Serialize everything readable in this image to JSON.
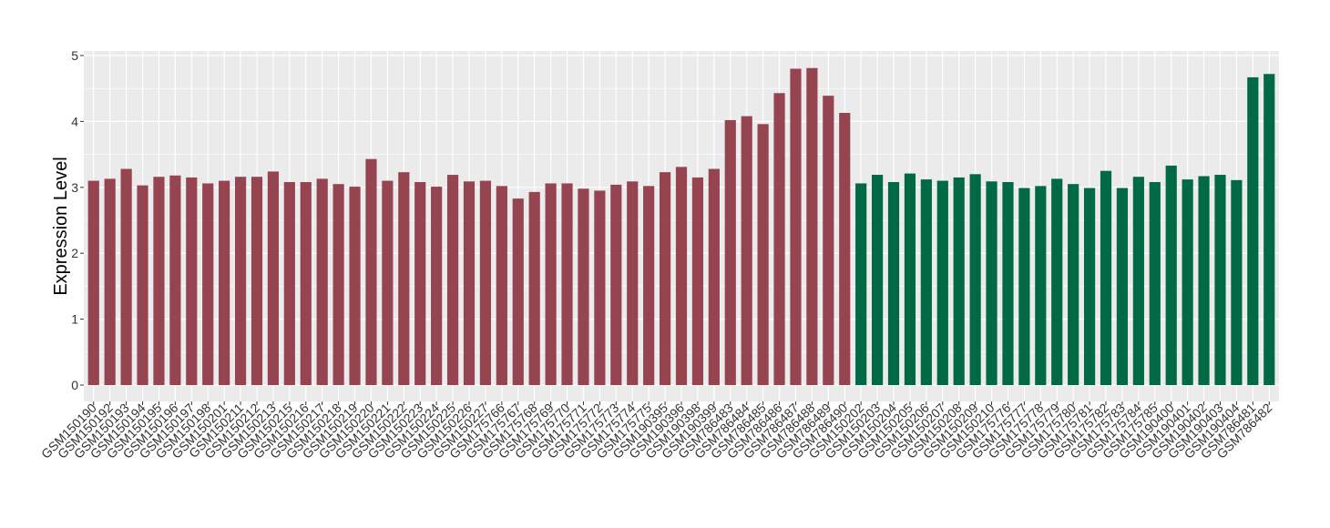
{
  "chart_data": {
    "type": "bar",
    "title": "",
    "xlabel": "",
    "ylabel": "Expression Level",
    "ylim": [
      0,
      5
    ],
    "yticks": [
      0,
      1,
      2,
      3,
      4,
      5
    ],
    "grid": true,
    "legend": "none",
    "colors": {
      "group_1": "#964450",
      "group_2": "#006a44",
      "panel_bg": "#ebebeb",
      "grid": "#ffffff"
    },
    "categories": [
      "GSM150190",
      "GSM150192",
      "GSM150193",
      "GSM150194",
      "GSM150195",
      "GSM150196",
      "GSM150197",
      "GSM150198",
      "GSM150201",
      "GSM150211",
      "GSM150212",
      "GSM150213",
      "GSM150215",
      "GSM150216",
      "GSM150217",
      "GSM150218",
      "GSM150219",
      "GSM150220",
      "GSM150221",
      "GSM150222",
      "GSM150223",
      "GSM150224",
      "GSM150225",
      "GSM150226",
      "GSM150227",
      "GSM175766",
      "GSM175767",
      "GSM175768",
      "GSM175769",
      "GSM175770",
      "GSM175771",
      "GSM175772",
      "GSM175773",
      "GSM175774",
      "GSM175775",
      "GSM190395",
      "GSM190396",
      "GSM190398",
      "GSM190399",
      "GSM786483",
      "GSM786484",
      "GSM786485",
      "GSM786486",
      "GSM786487",
      "GSM786488",
      "GSM786489",
      "GSM786490",
      "GSM150202",
      "GSM150203",
      "GSM150204",
      "GSM150205",
      "GSM150206",
      "GSM150207",
      "GSM150208",
      "GSM150209",
      "GSM150210",
      "GSM175776",
      "GSM175777",
      "GSM175778",
      "GSM175779",
      "GSM175780",
      "GSM175781",
      "GSM175782",
      "GSM175783",
      "GSM175784",
      "GSM175785",
      "GSM190400",
      "GSM190401",
      "GSM190402",
      "GSM190403",
      "GSM190404",
      "GSM786481",
      "GSM786482"
    ],
    "values": [
      3.1,
      3.13,
      3.28,
      3.03,
      3.16,
      3.18,
      3.15,
      3.06,
      3.1,
      3.16,
      3.16,
      3.24,
      3.08,
      3.08,
      3.13,
      3.05,
      3.01,
      3.43,
      3.1,
      3.23,
      3.08,
      3.01,
      3.19,
      3.09,
      3.1,
      3.02,
      2.83,
      2.93,
      3.06,
      3.06,
      2.98,
      2.95,
      3.04,
      3.09,
      3.02,
      3.23,
      3.31,
      3.15,
      3.28,
      4.02,
      4.08,
      3.96,
      4.43,
      4.8,
      4.81,
      4.39,
      4.13,
      3.06,
      3.19,
      3.08,
      3.21,
      3.12,
      3.1,
      3.15,
      3.2,
      3.09,
      3.08,
      2.99,
      3.02,
      3.13,
      3.05,
      2.99,
      3.25,
      2.99,
      3.16,
      3.08,
      3.33,
      3.12,
      3.17,
      3.19,
      3.11,
      4.67,
      4.72
    ],
    "groups": [
      1,
      1,
      1,
      1,
      1,
      1,
      1,
      1,
      1,
      1,
      1,
      1,
      1,
      1,
      1,
      1,
      1,
      1,
      1,
      1,
      1,
      1,
      1,
      1,
      1,
      1,
      1,
      1,
      1,
      1,
      1,
      1,
      1,
      1,
      1,
      1,
      1,
      1,
      1,
      1,
      1,
      1,
      1,
      1,
      1,
      1,
      1,
      2,
      2,
      2,
      2,
      2,
      2,
      2,
      2,
      2,
      2,
      2,
      2,
      2,
      2,
      2,
      2,
      2,
      2,
      2,
      2,
      2,
      2,
      2,
      2,
      2,
      2
    ]
  }
}
